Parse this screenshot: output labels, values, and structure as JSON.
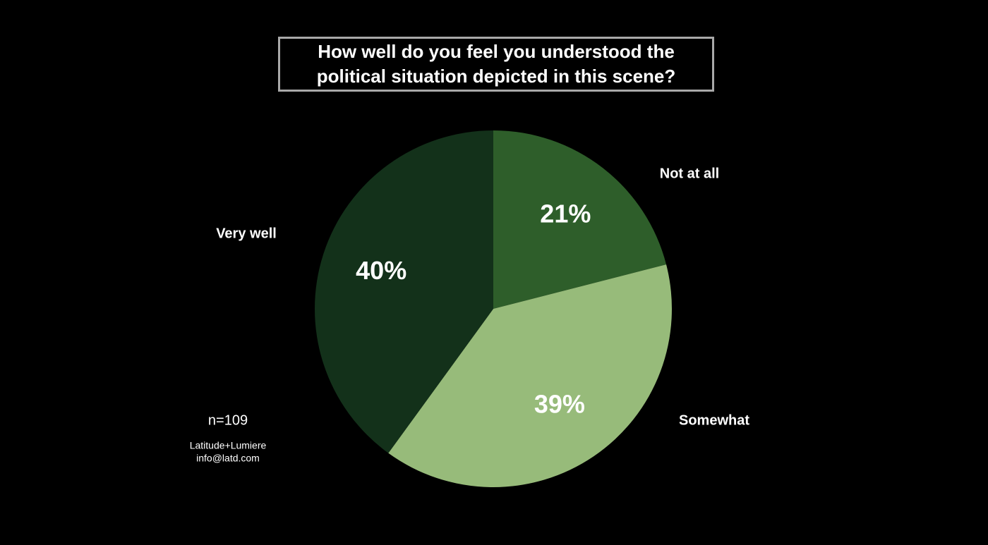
{
  "chart_data": {
    "type": "pie",
    "title": "How well do you feel you understood the political situation depicted in this scene?",
    "categories": [
      "Not at all",
      "Somewhat",
      "Very well"
    ],
    "values": [
      21,
      39,
      40
    ],
    "value_labels": [
      "21%",
      "39%",
      "40%"
    ],
    "colors": [
      "#2e5e2a",
      "#97bb7a",
      "#13311a"
    ],
    "annotations": [
      "n=109",
      "Latitude+Lumiere",
      "info@latd.com"
    ]
  }
}
